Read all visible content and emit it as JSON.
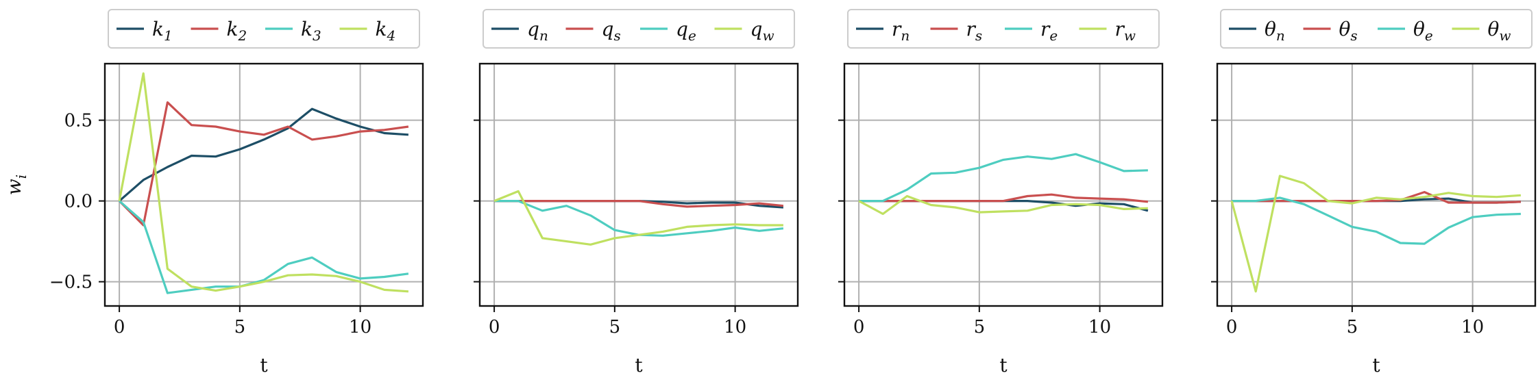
{
  "chart_data": [
    {
      "type": "line",
      "xlabel": "t",
      "ylabel": "w",
      "ylabel_sub": "i",
      "xlim": [
        -0.6,
        12.6
      ],
      "ylim": [
        -0.65,
        0.85
      ],
      "xticks": [
        0,
        5,
        10
      ],
      "yticks": [
        -0.5,
        0.0,
        0.5
      ],
      "ytick_labels": [
        "−0.5",
        "0.0",
        "0.5"
      ],
      "show_yticklabels": true,
      "grid": true,
      "legend": "top",
      "x": [
        0,
        1,
        2,
        3,
        4,
        5,
        6,
        7,
        8,
        9,
        10,
        11,
        12
      ],
      "series": [
        {
          "name": "k",
          "sub": "1",
          "color": "#1d4e66",
          "values": [
            0.0,
            0.13,
            0.21,
            0.28,
            0.275,
            0.32,
            0.38,
            0.45,
            0.57,
            0.51,
            0.46,
            0.42,
            0.41
          ]
        },
        {
          "name": "k",
          "sub": "2",
          "color": "#c94f4f",
          "values": [
            0.0,
            -0.15,
            0.61,
            0.47,
            0.46,
            0.43,
            0.41,
            0.46,
            0.38,
            0.4,
            0.43,
            0.44,
            0.46
          ]
        },
        {
          "name": "k",
          "sub": "3",
          "color": "#4ecdc0",
          "values": [
            0.0,
            -0.13,
            -0.57,
            -0.55,
            -0.53,
            -0.53,
            -0.49,
            -0.39,
            -0.35,
            -0.44,
            -0.48,
            -0.47,
            -0.45
          ]
        },
        {
          "name": "k",
          "sub": "4",
          "color": "#bfe060",
          "values": [
            0.0,
            0.79,
            -0.42,
            -0.53,
            -0.555,
            -0.53,
            -0.5,
            -0.46,
            -0.455,
            -0.465,
            -0.5,
            -0.55,
            -0.56
          ]
        }
      ]
    },
    {
      "type": "line",
      "xlabel": "t",
      "xlim": [
        -0.6,
        12.6
      ],
      "ylim": [
        -0.65,
        0.85
      ],
      "xticks": [
        0,
        5,
        10
      ],
      "yticks": [
        -0.5,
        0.0,
        0.5
      ],
      "show_yticklabels": false,
      "grid": true,
      "legend": "top",
      "x": [
        0,
        1,
        2,
        3,
        4,
        5,
        6,
        7,
        8,
        9,
        10,
        11,
        12
      ],
      "series": [
        {
          "name": "q",
          "sub": "n",
          "color": "#1d4e66",
          "values": [
            0.0,
            0.0,
            0.0,
            0.0,
            0.0,
            0.0,
            0.0,
            -0.005,
            -0.015,
            -0.01,
            -0.01,
            -0.03,
            -0.04
          ]
        },
        {
          "name": "q",
          "sub": "s",
          "color": "#c94f4f",
          "values": [
            0.0,
            0.0,
            0.0,
            0.0,
            0.0,
            0.0,
            0.0,
            -0.02,
            -0.035,
            -0.03,
            -0.025,
            -0.015,
            -0.03
          ]
        },
        {
          "name": "q",
          "sub": "e",
          "color": "#4ecdc0",
          "values": [
            0.0,
            0.0,
            -0.06,
            -0.03,
            -0.09,
            -0.18,
            -0.21,
            -0.215,
            -0.2,
            -0.185,
            -0.165,
            -0.185,
            -0.17
          ]
        },
        {
          "name": "q",
          "sub": "w",
          "color": "#bfe060",
          "values": [
            0.0,
            0.06,
            -0.23,
            -0.25,
            -0.27,
            -0.23,
            -0.21,
            -0.19,
            -0.16,
            -0.15,
            -0.145,
            -0.15,
            -0.15
          ]
        }
      ]
    },
    {
      "type": "line",
      "xlabel": "t",
      "xlim": [
        -0.6,
        12.6
      ],
      "ylim": [
        -0.65,
        0.85
      ],
      "xticks": [
        0,
        5,
        10
      ],
      "yticks": [
        -0.5,
        0.0,
        0.5
      ],
      "show_yticklabels": false,
      "grid": true,
      "legend": "top",
      "x": [
        0,
        1,
        2,
        3,
        4,
        5,
        6,
        7,
        8,
        9,
        10,
        11,
        12
      ],
      "series": [
        {
          "name": "r",
          "sub": "n",
          "color": "#1d4e66",
          "values": [
            0.0,
            0.0,
            0.0,
            0.0,
            0.0,
            0.0,
            0.0,
            0.0,
            -0.01,
            -0.03,
            -0.015,
            -0.02,
            -0.06
          ]
        },
        {
          "name": "r",
          "sub": "s",
          "color": "#c94f4f",
          "values": [
            0.0,
            0.0,
            0.0,
            0.0,
            0.0,
            0.0,
            0.0,
            0.03,
            0.04,
            0.02,
            0.015,
            0.01,
            -0.005
          ]
        },
        {
          "name": "r",
          "sub": "e",
          "color": "#4ecdc0",
          "values": [
            0.0,
            0.0,
            0.07,
            0.17,
            0.175,
            0.205,
            0.255,
            0.275,
            0.26,
            0.29,
            0.24,
            0.185,
            0.19
          ]
        },
        {
          "name": "r",
          "sub": "w",
          "color": "#bfe060",
          "values": [
            0.0,
            -0.08,
            0.03,
            -0.025,
            -0.04,
            -0.07,
            -0.065,
            -0.06,
            -0.025,
            -0.02,
            -0.025,
            -0.05,
            -0.045
          ]
        }
      ]
    },
    {
      "type": "line",
      "xlabel": "t",
      "xlim": [
        -0.6,
        12.6
      ],
      "ylim": [
        -0.65,
        0.85
      ],
      "xticks": [
        0,
        5,
        10
      ],
      "yticks": [
        -0.5,
        0.0,
        0.5
      ],
      "show_yticklabels": false,
      "grid": true,
      "legend": "top",
      "x": [
        0,
        1,
        2,
        3,
        4,
        5,
        6,
        7,
        8,
        9,
        10,
        11,
        12
      ],
      "series": [
        {
          "name": "θ",
          "sub": "n",
          "color": "#1d4e66",
          "values": [
            0.0,
            0.0,
            0.0,
            0.0,
            0.0,
            0.0,
            0.0,
            0.0,
            0.01,
            0.015,
            -0.01,
            -0.01,
            -0.005
          ]
        },
        {
          "name": "θ",
          "sub": "s",
          "color": "#c94f4f",
          "values": [
            0.0,
            0.0,
            0.0,
            0.0,
            0.0,
            0.0,
            0.0,
            0.005,
            0.055,
            -0.01,
            -0.01,
            -0.01,
            -0.005
          ]
        },
        {
          "name": "θ",
          "sub": "e",
          "color": "#4ecdc0",
          "values": [
            0.0,
            0.0,
            0.02,
            -0.02,
            -0.09,
            -0.16,
            -0.19,
            -0.26,
            -0.265,
            -0.165,
            -0.1,
            -0.085,
            -0.08
          ]
        },
        {
          "name": "θ",
          "sub": "w",
          "color": "#bfe060",
          "values": [
            0.0,
            -0.56,
            0.155,
            0.11,
            0.0,
            -0.015,
            0.02,
            0.01,
            0.025,
            0.05,
            0.03,
            0.025,
            0.035
          ]
        }
      ]
    }
  ]
}
